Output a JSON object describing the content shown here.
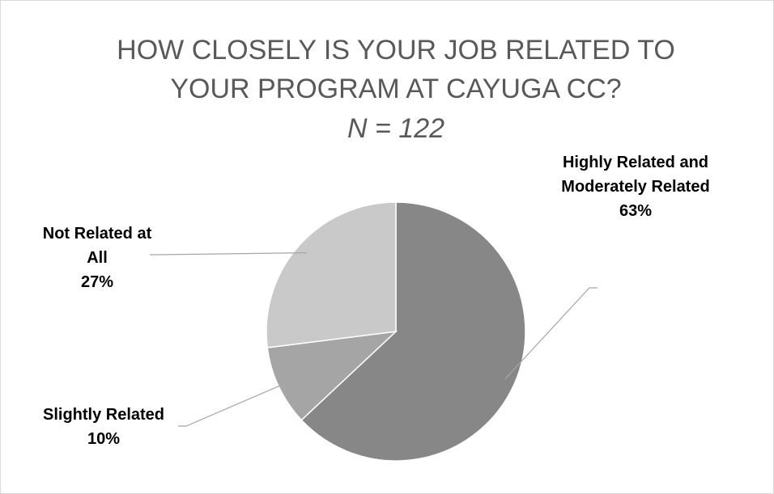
{
  "chart_data": {
    "type": "pie",
    "title": "HOW CLOSELY IS YOUR JOB RELATED TO YOUR PROGRAM AT CAYUGA CC?",
    "subtitle": "N = 122",
    "categories": [
      "Highly Related and Moderately Related",
      "Slightly Related",
      "Not Related at All"
    ],
    "values": [
      63,
      10,
      27
    ],
    "value_labels": [
      "63%",
      "10%",
      "27%"
    ],
    "colors": [
      "#878787",
      "#a5a5a5",
      "#c9c9c9"
    ]
  }
}
